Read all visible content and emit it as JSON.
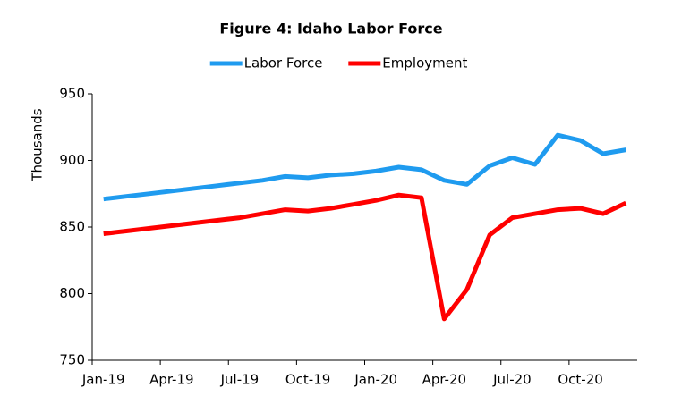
{
  "chart_data": {
    "type": "line",
    "title": "Figure 4: Idaho Labor Force",
    "y_label": "Thousands",
    "categories": [
      "Jan-19",
      null,
      null,
      "Apr-19",
      null,
      null,
      "Jul-19",
      null,
      null,
      "Oct-19",
      null,
      null,
      "Jan-20",
      null,
      null,
      "Apr-20",
      null,
      null,
      "Jul-20",
      null,
      null,
      "Oct-20",
      null,
      null
    ],
    "series": [
      {
        "name": "Labor Force",
        "color": "#1f9bef",
        "values": [
          871,
          873,
          875,
          877,
          879,
          881,
          883,
          885,
          888,
          887,
          889,
          890,
          892,
          895,
          893,
          885,
          882,
          896,
          902,
          897,
          919,
          915,
          905,
          908
        ]
      },
      {
        "name": "Employment",
        "color": "#ff0000",
        "values": [
          845,
          847,
          849,
          851,
          853,
          855,
          857,
          860,
          863,
          862,
          864,
          867,
          870,
          874,
          872,
          781,
          803,
          844,
          857,
          860,
          863,
          864,
          860,
          868
        ]
      }
    ],
    "ylim": [
      750,
      950
    ],
    "yticks": [
      750,
      800,
      850,
      900,
      950
    ],
    "grid": false,
    "legend": "top"
  }
}
